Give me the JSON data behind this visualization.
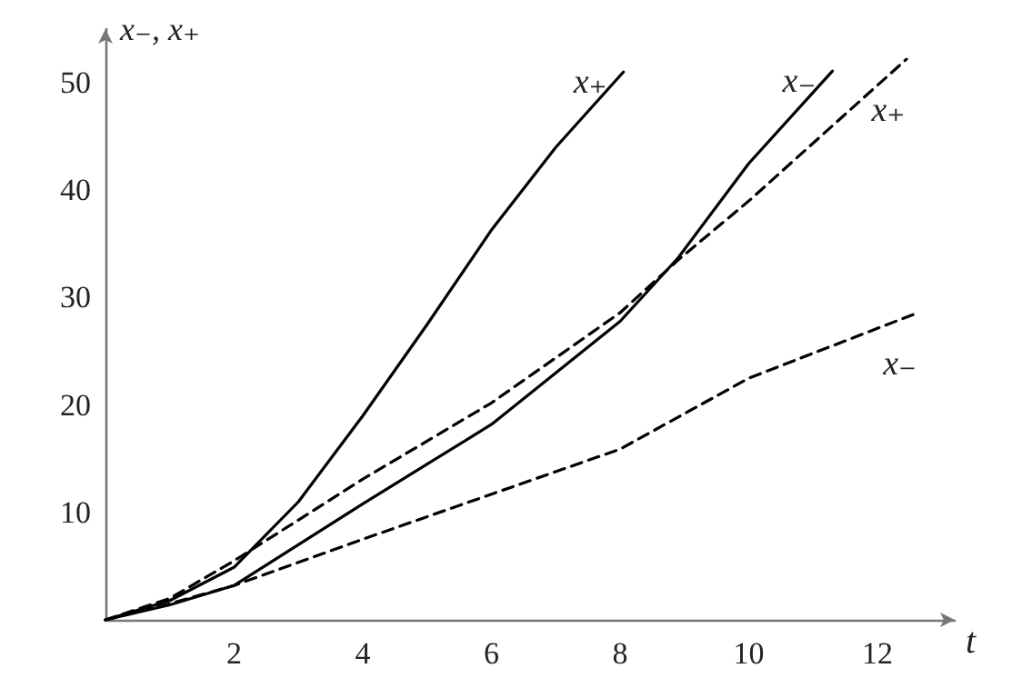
{
  "chart_data": {
    "type": "line",
    "xlabel": "t",
    "ylabel": "x₋, x₊",
    "xlim": [
      0,
      13.2
    ],
    "ylim": [
      0,
      55
    ],
    "xticks": [
      2,
      4,
      6,
      8,
      10,
      12
    ],
    "yticks": [
      10,
      20,
      30,
      40,
      50
    ],
    "grid": false,
    "legend": false,
    "marker": "none",
    "series": [
      {
        "name": "x₊",
        "color": "#000000",
        "line_style": "solid",
        "x": [
          0,
          1,
          2,
          3,
          4,
          5,
          6,
          7,
          8.05
        ],
        "values": [
          0,
          1.8,
          4.9,
          11,
          19,
          27.5,
          36.3,
          44,
          51
        ]
      },
      {
        "name": "x₋",
        "color": "#000000",
        "line_style": "solid",
        "x": [
          0,
          1,
          2,
          4,
          6,
          8,
          8.9,
          10,
          11.3
        ],
        "values": [
          0,
          1.4,
          3.2,
          10.8,
          18.2,
          27.8,
          33.7,
          42.5,
          51.1
        ]
      },
      {
        "name": "x₊",
        "color": "#000000",
        "line_style": "dashed",
        "x": [
          0,
          1,
          2,
          4,
          6,
          8,
          8.9,
          10,
          12.45
        ],
        "values": [
          0,
          2,
          5.5,
          13.1,
          20.2,
          28.6,
          33.5,
          39,
          52.2
        ]
      },
      {
        "name": "x₋",
        "color": "#000000",
        "line_style": "dashed",
        "x": [
          0,
          1,
          2,
          4,
          6,
          8,
          10,
          12.63
        ],
        "values": [
          0,
          1.5,
          3.2,
          7.5,
          11.7,
          15.9,
          22.5,
          28.6
        ]
      }
    ]
  }
}
